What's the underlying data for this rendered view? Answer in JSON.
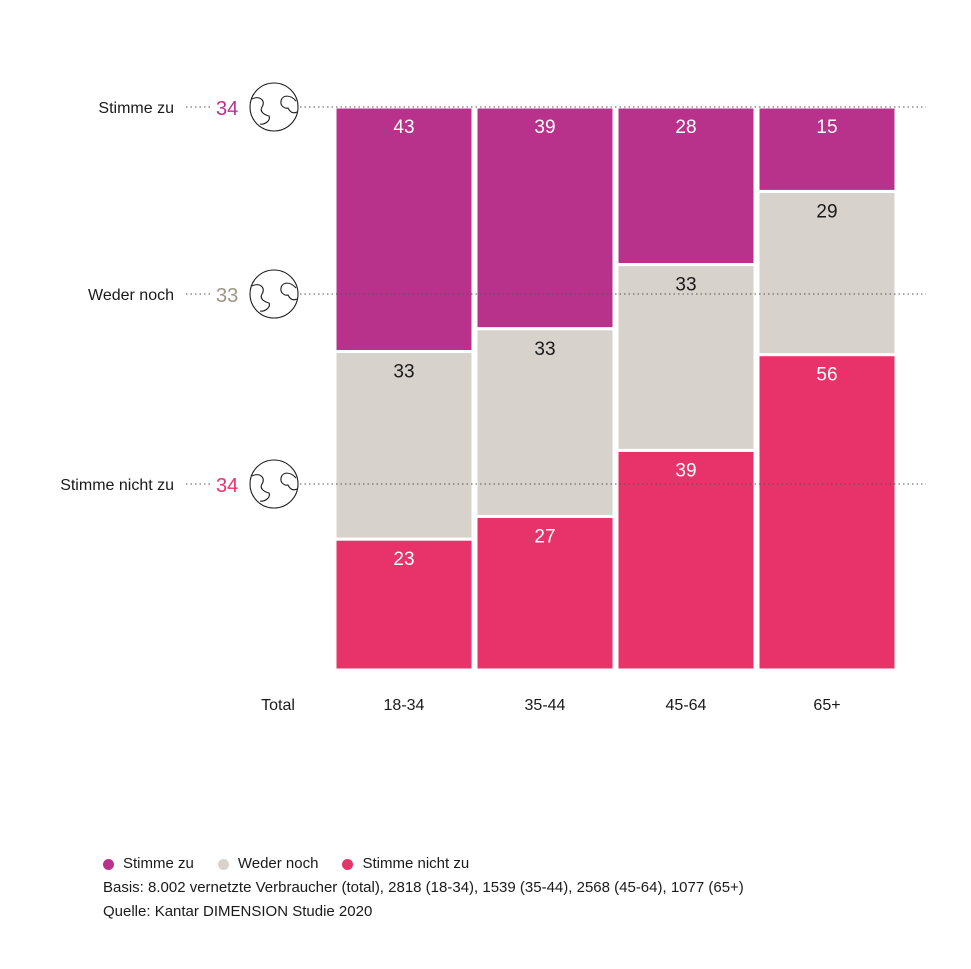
{
  "chart_data": {
    "type": "stacked-bar",
    "categories": [
      "18-34",
      "35-44",
      "45-64",
      "65+"
    ],
    "series": [
      {
        "name": "Stimme zu",
        "values": [
          43,
          39,
          28,
          15
        ]
      },
      {
        "name": "Weder noch",
        "values": [
          33,
          33,
          33,
          29
        ]
      },
      {
        "name": "Stimme nicht zu",
        "values": [
          23,
          27,
          39,
          56
        ]
      }
    ],
    "total": {
      "label": "Total",
      "values": [
        {
          "label": "Stimme zu",
          "value": 34
        },
        {
          "label": "Weder noch",
          "value": 33
        },
        {
          "label": "Stimme nicht zu",
          "value": 34
        }
      ]
    },
    "ylim": [
      0,
      100
    ],
    "colors": {
      "Stimme zu": "#b8328c",
      "Weder noch": "#d7d2cb",
      "Stimme nicht zu": "#e8336a",
      "weder_text": "#9b9684"
    }
  },
  "footer": {
    "basis": "Basis: 8.002 vernetzte Verbraucher (total), 2818 (18-34), 1539 (35-44), 2568 (45-64), 1077 (65+)",
    "quelle": "Quelle: Kantar DIMENSION Studie 2020"
  }
}
